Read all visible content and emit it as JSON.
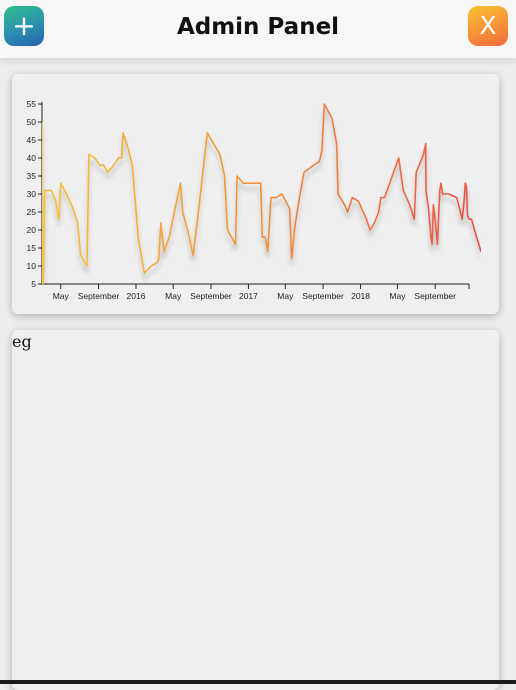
{
  "header": {
    "title": "Admin Panel",
    "add_label": "+",
    "close_label": "X"
  },
  "text_panel": {
    "content": "eg"
  },
  "colors": {
    "line_start": "#f7c23a",
    "line_mid": "#f0903a",
    "line_end": "#e8524a",
    "add_button": "#2b8fb0",
    "close_button": "#f6923a"
  },
  "chart_data": {
    "type": "line",
    "x_tick_labels": [
      "May",
      "September",
      "2016",
      "May",
      "September",
      "2017",
      "May",
      "September",
      "2018",
      "May",
      "September"
    ],
    "y_ticks": [
      5,
      10,
      15,
      20,
      25,
      30,
      35,
      40,
      45,
      50,
      55
    ],
    "ylim": [
      5,
      55
    ],
    "xlim": [
      "2015-03-01",
      "2018-12-20"
    ],
    "grid": false,
    "series": [
      {
        "points": [
          [
            "2015-03-01",
            50
          ],
          [
            "2015-03-02",
            3
          ],
          [
            "2015-03-05",
            5
          ],
          [
            "2015-03-10",
            31
          ],
          [
            "2015-03-22",
            31
          ],
          [
            "2015-04-01",
            31
          ],
          [
            "2015-04-15",
            28
          ],
          [
            "2015-04-25",
            23
          ],
          [
            "2015-05-01",
            33
          ],
          [
            "2015-05-20",
            30
          ],
          [
            "2015-06-10",
            26
          ],
          [
            "2015-06-25",
            22
          ],
          [
            "2015-07-05",
            13
          ],
          [
            "2015-07-25",
            10
          ],
          [
            "2015-08-01",
            41
          ],
          [
            "2015-08-20",
            40
          ],
          [
            "2015-09-05",
            38
          ],
          [
            "2015-09-18",
            38
          ],
          [
            "2015-10-01",
            36
          ],
          [
            "2015-10-20",
            38
          ],
          [
            "2015-11-05",
            40
          ],
          [
            "2015-11-15",
            40
          ],
          [
            "2015-11-20",
            47
          ],
          [
            "2015-12-05",
            43
          ],
          [
            "2015-12-20",
            38
          ],
          [
            "2016-01-08",
            18
          ],
          [
            "2016-01-28",
            8
          ],
          [
            "2016-02-20",
            10
          ],
          [
            "2016-03-10",
            11
          ],
          [
            "2016-03-15",
            12
          ],
          [
            "2016-03-22",
            22
          ],
          [
            "2016-04-01",
            14
          ],
          [
            "2016-04-18",
            18
          ],
          [
            "2016-05-10",
            27
          ],
          [
            "2016-05-25",
            33
          ],
          [
            "2016-06-01",
            25
          ],
          [
            "2016-06-20",
            19
          ],
          [
            "2016-07-05",
            13
          ],
          [
            "2016-07-22",
            25
          ],
          [
            "2016-08-20",
            47
          ],
          [
            "2016-09-10",
            44
          ],
          [
            "2016-09-30",
            41
          ],
          [
            "2016-10-15",
            35
          ],
          [
            "2016-10-25",
            20
          ],
          [
            "2016-11-20",
            16
          ],
          [
            "2016-11-25",
            35
          ],
          [
            "2016-12-05",
            34
          ],
          [
            "2016-12-15",
            33
          ],
          [
            "2017-01-20",
            33
          ],
          [
            "2017-02-10",
            33
          ],
          [
            "2017-02-15",
            18
          ],
          [
            "2017-02-25",
            18
          ],
          [
            "2017-03-05",
            14
          ],
          [
            "2017-03-15",
            29
          ],
          [
            "2017-04-01",
            29
          ],
          [
            "2017-04-20",
            30
          ],
          [
            "2017-05-15",
            26
          ],
          [
            "2017-05-22",
            12
          ],
          [
            "2017-06-01",
            21
          ],
          [
            "2017-06-20",
            31
          ],
          [
            "2017-07-01",
            36
          ],
          [
            "2017-08-01",
            38
          ],
          [
            "2017-08-20",
            39
          ],
          [
            "2017-08-28",
            42
          ],
          [
            "2017-09-05",
            55
          ],
          [
            "2017-09-30",
            51
          ],
          [
            "2017-10-15",
            44
          ],
          [
            "2017-10-20",
            30
          ],
          [
            "2017-11-10",
            27
          ],
          [
            "2017-11-20",
            25
          ],
          [
            "2017-12-05",
            29
          ],
          [
            "2017-12-25",
            28
          ],
          [
            "2018-01-20",
            23
          ],
          [
            "2018-02-01",
            20
          ],
          [
            "2018-02-15",
            22
          ],
          [
            "2018-03-01",
            25
          ],
          [
            "2018-03-08",
            29
          ],
          [
            "2018-03-20",
            29
          ],
          [
            "2018-05-05",
            40
          ],
          [
            "2018-05-20",
            31
          ],
          [
            "2018-06-10",
            27
          ],
          [
            "2018-06-25",
            23
          ],
          [
            "2018-07-01",
            36
          ],
          [
            "2018-07-25",
            41
          ],
          [
            "2018-08-01",
            44
          ],
          [
            "2018-08-02",
            31
          ],
          [
            "2018-08-10",
            26
          ],
          [
            "2018-08-18",
            18
          ],
          [
            "2018-08-22",
            16
          ],
          [
            "2018-08-26",
            27
          ],
          [
            "2018-09-02",
            22
          ],
          [
            "2018-09-08",
            16
          ],
          [
            "2018-09-16",
            31
          ],
          [
            "2018-09-20",
            33
          ],
          [
            "2018-09-25",
            30
          ],
          [
            "2018-10-15",
            30
          ],
          [
            "2018-11-10",
            29
          ],
          [
            "2018-11-28",
            23
          ],
          [
            "2018-12-05",
            29
          ],
          [
            "2018-12-08",
            33
          ],
          [
            "2018-12-12",
            32
          ],
          [
            "2018-12-15",
            24
          ],
          [
            "2018-12-20",
            23
          ],
          [
            "2018-12-28",
            23
          ],
          [
            "2019-01-10",
            19
          ],
          [
            "2019-01-28",
            14
          ]
        ]
      }
    ]
  }
}
